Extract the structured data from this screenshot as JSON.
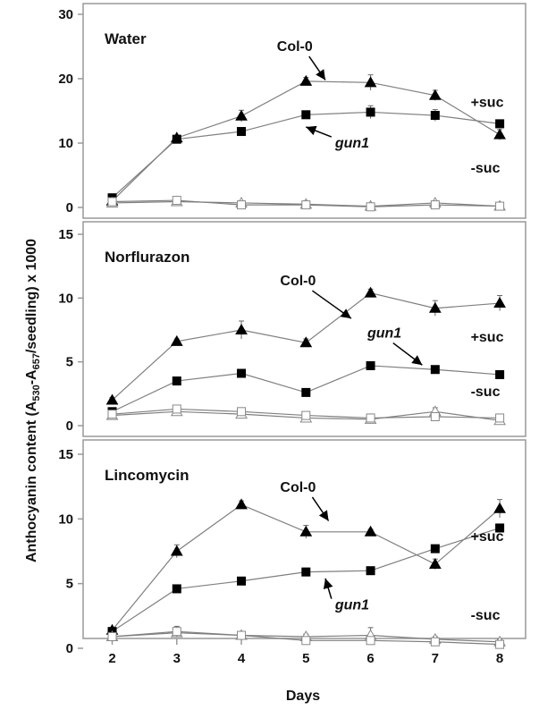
{
  "figure": {
    "ylabel_prefix": "Anthocyanin content  (A",
    "ylabel_sub1": "530",
    "ylabel_mid": "-A",
    "ylabel_sub2": "657",
    "ylabel_suffix": "/seedling) x 1000",
    "xlabel": "Days"
  },
  "chart_data": [
    {
      "type": "line",
      "title": "Water",
      "x": [
        2,
        3,
        4,
        5,
        6,
        7,
        8
      ],
      "xticks": [
        "2",
        "3",
        "4",
        "5",
        "6",
        "7",
        "8"
      ],
      "xlim": [
        1.55,
        8.4
      ],
      "ylim": [
        0,
        30
      ],
      "yticks": [
        0,
        10,
        20,
        30
      ],
      "series": [
        {
          "name": "Col-0 +suc",
          "marker": "triangle",
          "filled": true,
          "values": [
            1.0,
            10.8,
            14.2,
            19.6,
            19.4,
            17.4,
            11.3
          ],
          "err": [
            0.3,
            0.4,
            0.9,
            0.6,
            1.2,
            0.8,
            0.8
          ]
        },
        {
          "name": "gun1 +suc",
          "marker": "square",
          "filled": true,
          "values": [
            1.5,
            10.6,
            11.8,
            14.4,
            14.8,
            14.3,
            13.0
          ],
          "err": [
            0.3,
            0.4,
            0.5,
            0.5,
            1.0,
            0.9,
            0.6
          ]
        },
        {
          "name": "Col-0 -suc",
          "marker": "triangle",
          "filled": false,
          "values": [
            0.7,
            0.9,
            0.7,
            0.5,
            0.2,
            0.7,
            0.2
          ],
          "err": [
            0.2,
            0.3,
            0.2,
            0.2,
            0.2,
            0.2,
            0.2
          ]
        },
        {
          "name": "gun1 -suc",
          "marker": "square",
          "filled": false,
          "values": [
            0.9,
            1.1,
            0.4,
            0.4,
            0.1,
            0.4,
            0.2
          ],
          "err": [
            0.2,
            0.3,
            0.2,
            0.2,
            0.2,
            0.2,
            0.2
          ]
        }
      ],
      "annotations": [
        {
          "text": "Col-0",
          "italic": false,
          "at": [
            5.3,
            19.8
          ],
          "label_at": [
            4.55,
            24.3
          ]
        },
        {
          "text": "gun1",
          "italic": true,
          "at": [
            5.0,
            12.5
          ],
          "label_at": [
            5.45,
            9.3
          ]
        },
        {
          "text": "+suc",
          "italic": false,
          "label_at": [
            7.55,
            15.6
          ]
        },
        {
          "text": "-suc",
          "italic": false,
          "label_at": [
            7.55,
            5.4
          ]
        }
      ]
    },
    {
      "type": "line",
      "title": "Norflurazon",
      "x": [
        2,
        3,
        4,
        5,
        6,
        7,
        8
      ],
      "xticks": [
        "2",
        "3",
        "4",
        "5",
        "6",
        "7",
        "8"
      ],
      "xlim": [
        1.55,
        8.4
      ],
      "ylim": [
        0,
        15
      ],
      "yticks": [
        0,
        5,
        10,
        15
      ],
      "series": [
        {
          "name": "Col-0 +suc",
          "marker": "triangle",
          "filled": true,
          "values": [
            2.0,
            6.6,
            7.5,
            6.5,
            10.4,
            9.2,
            9.6
          ],
          "err": [
            0.2,
            0.2,
            0.7,
            0.3,
            0.3,
            0.6,
            0.6
          ]
        },
        {
          "name": "gun1 +suc",
          "marker": "square",
          "filled": true,
          "values": [
            1.1,
            3.5,
            4.1,
            2.6,
            4.7,
            4.4,
            4.0
          ],
          "err": [
            0.2,
            0.2,
            0.3,
            0.2,
            0.3,
            0.2,
            0.2
          ]
        },
        {
          "name": "Col-0 -suc",
          "marker": "triangle",
          "filled": false,
          "values": [
            0.8,
            1.1,
            0.9,
            0.6,
            0.5,
            1.1,
            0.4
          ],
          "err": [
            0.2,
            0.3,
            0.3,
            0.2,
            0.2,
            0.3,
            0.2
          ]
        },
        {
          "name": "gun1 -suc",
          "marker": "square",
          "filled": false,
          "values": [
            0.9,
            1.3,
            1.1,
            0.8,
            0.6,
            0.7,
            0.6
          ],
          "err": [
            0.2,
            0.3,
            0.3,
            0.2,
            0.2,
            0.2,
            0.2
          ]
        }
      ],
      "annotations": [
        {
          "text": "Col-0",
          "italic": false,
          "at": [
            5.7,
            8.4
          ],
          "label_at": [
            4.6,
            11.0
          ]
        },
        {
          "text": "gun1",
          "italic": true,
          "at": [
            6.8,
            4.75
          ],
          "label_at": [
            5.95,
            6.9
          ]
        },
        {
          "text": "+suc",
          "italic": false,
          "label_at": [
            7.55,
            6.6
          ]
        },
        {
          "text": "-suc",
          "italic": false,
          "label_at": [
            7.55,
            2.3
          ]
        }
      ]
    },
    {
      "type": "line",
      "title": "Lincomycin",
      "x": [
        2,
        3,
        4,
        5,
        6,
        7,
        8
      ],
      "xticks": [
        "2",
        "3",
        "4",
        "5",
        "6",
        "7",
        "8"
      ],
      "xlim": [
        1.55,
        8.4
      ],
      "ylim": [
        0,
        15
      ],
      "yticks": [
        0,
        5,
        10,
        15
      ],
      "series": [
        {
          "name": "Col-0 +suc",
          "marker": "triangle",
          "filled": true,
          "values": [
            1.4,
            7.5,
            11.1,
            9.0,
            9.0,
            6.5,
            10.8
          ],
          "err": [
            0.2,
            0.5,
            0.3,
            0.5,
            0.2,
            0.4,
            0.7
          ]
        },
        {
          "name": "gun1 +suc",
          "marker": "square",
          "filled": true,
          "values": [
            1.3,
            4.6,
            5.2,
            5.9,
            6.0,
            7.7,
            9.3
          ],
          "err": [
            0.2,
            0.2,
            0.2,
            0.3,
            0.2,
            0.2,
            0.3
          ]
        },
        {
          "name": "Col-0 -suc",
          "marker": "triangle",
          "filled": false,
          "values": [
            0.9,
            1.2,
            1.0,
            0.9,
            1.0,
            0.7,
            0.5
          ],
          "err": [
            0.2,
            0.3,
            0.2,
            0.2,
            0.6,
            0.2,
            0.2
          ]
        },
        {
          "name": "gun1 -suc",
          "marker": "square",
          "filled": false,
          "values": [
            0.9,
            1.3,
            1.0,
            0.6,
            0.6,
            0.5,
            0.3
          ],
          "err": [
            0.2,
            0.4,
            0.2,
            0.2,
            0.2,
            0.2,
            0.2
          ]
        }
      ],
      "annotations": [
        {
          "text": "Col-0",
          "italic": false,
          "at": [
            5.35,
            9.85
          ],
          "label_at": [
            4.6,
            12.1
          ]
        },
        {
          "text": "gun1",
          "italic": true,
          "at": [
            5.3,
            5.4
          ],
          "label_at": [
            5.45,
            3.0
          ]
        },
        {
          "text": "+suc",
          "italic": false,
          "label_at": [
            7.55,
            8.3
          ]
        },
        {
          "text": "-suc",
          "italic": false,
          "label_at": [
            7.55,
            2.2
          ]
        }
      ]
    }
  ]
}
